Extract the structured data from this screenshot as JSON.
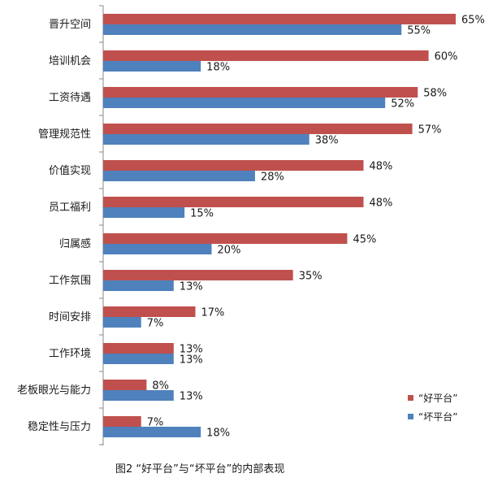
{
  "chart_data": {
    "type": "bar",
    "orientation": "horizontal",
    "categories": [
      "晋升空间",
      "培训机会",
      "工资待遇",
      "管理规范性",
      "价值实现",
      "员工福利",
      "归属感",
      "工作氛围",
      "时间安排",
      "工作环境",
      "老板眼光与能力",
      "稳定性与压力"
    ],
    "series": [
      {
        "name": "“好平台”",
        "color": "#c0504d",
        "values": [
          65,
          60,
          58,
          57,
          48,
          48,
          45,
          35,
          17,
          13,
          8,
          7
        ]
      },
      {
        "name": "“坏平台”",
        "color": "#4f81bd",
        "values": [
          55,
          18,
          52,
          38,
          28,
          15,
          20,
          13,
          7,
          13,
          13,
          18
        ]
      }
    ],
    "value_suffix": "%",
    "xlim": [
      0,
      65
    ],
    "grid": false,
    "legend_position": "right"
  },
  "caption": "图2 “好平台”与“坏平台”的内部表现"
}
